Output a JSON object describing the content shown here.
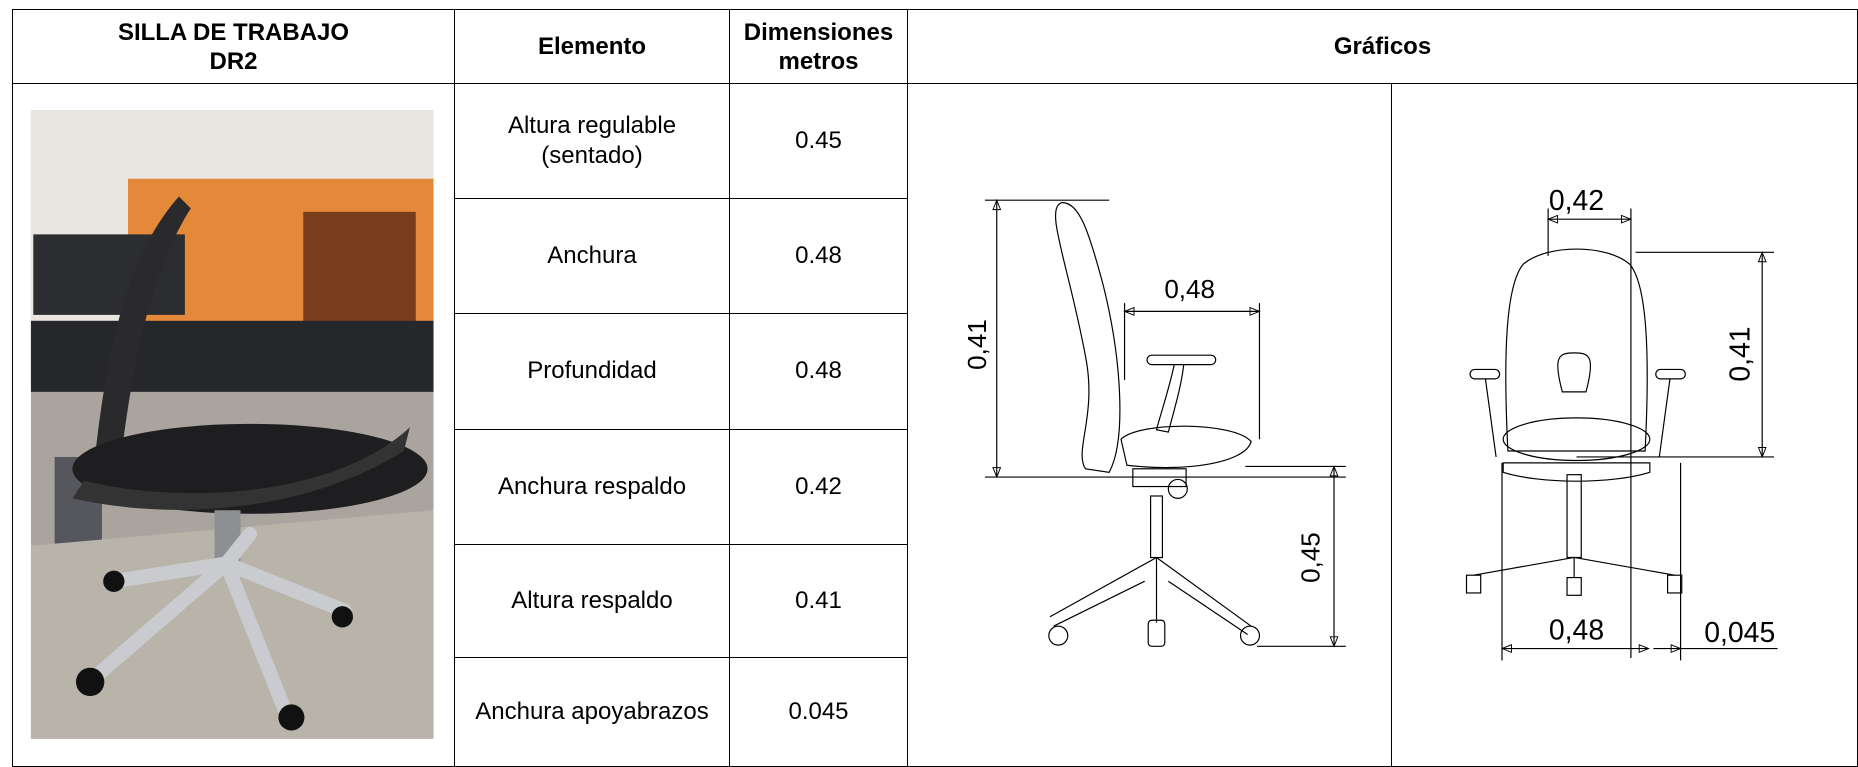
{
  "header": {
    "title_lines": [
      "SILLA DE TRABAJO",
      "DR2"
    ],
    "element": "Elemento",
    "dimensions": "Dimensiones metros",
    "graphics": "Gráficos"
  },
  "rows": [
    {
      "element": "Altura regulable (sentado)",
      "value": 0.45
    },
    {
      "element": "Anchura",
      "value": 0.48
    },
    {
      "element": "Profundidad",
      "value": 0.48
    },
    {
      "element": "Anchura respaldo",
      "value": 0.42
    },
    {
      "element": "Altura respaldo",
      "value": 0.41
    },
    {
      "element": "Anchura apoyabrazos",
      "value": 0.045
    }
  ],
  "side_view": {
    "back_height": "0,41",
    "depth": "0,48",
    "seat_height": "0,45"
  },
  "front_view": {
    "back_width": "0,42",
    "back_height": "0,41",
    "seat_width": "0,48",
    "armrest_width": "0,045"
  }
}
